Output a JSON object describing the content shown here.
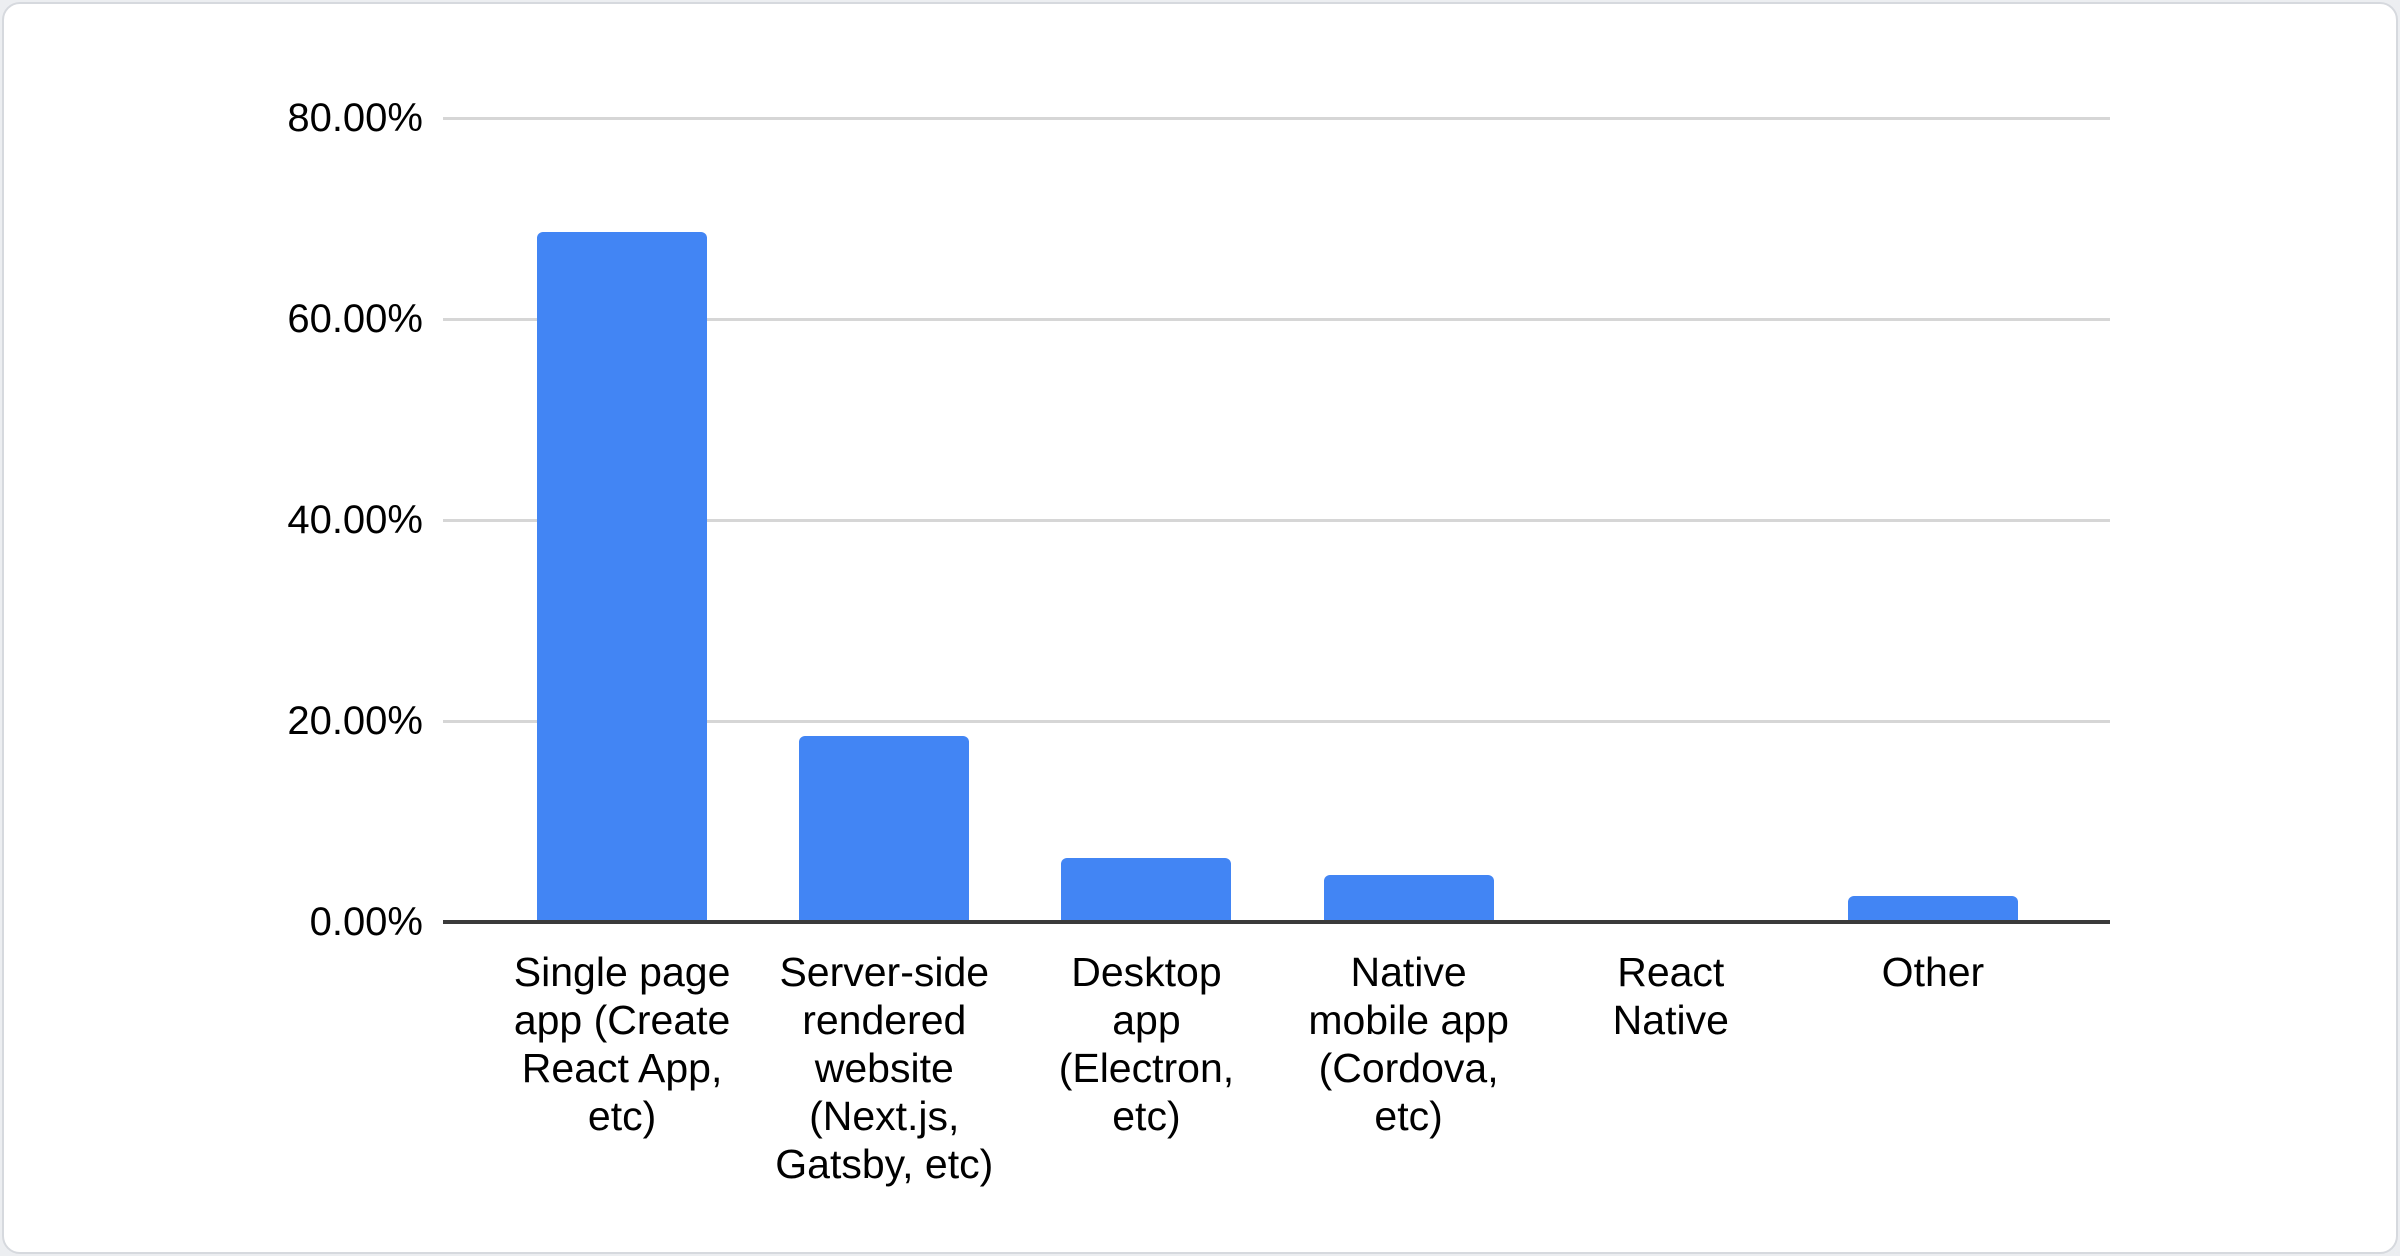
{
  "chart_data": {
    "type": "bar",
    "title": "",
    "categories": [
      "Single page app (Create React App, etc)",
      "Server-side rendered website (Next.js, Gatsby, etc)",
      "Desktop app (Electron, etc)",
      "Native mobile app (Cordova, etc)",
      "React Native",
      "Other"
    ],
    "display_categories": [
      "Single page\napp (Create\nReact App,\netc)",
      "Server-side\nrendered\nwebsite\n(Next.js,\nGatsby, etc)",
      "Desktop\napp\n(Electron,\netc)",
      "Native\nmobile app\n(Cordova,\netc)",
      "React\nNative",
      "Other"
    ],
    "values": [
      68.5,
      18.3,
      6.2,
      4.5,
      0,
      2.4
    ],
    "value_unit": "percent",
    "xlabel": "",
    "ylabel": "",
    "ylim": [
      0,
      80
    ],
    "yticks": [
      0,
      20,
      40,
      60,
      80
    ],
    "ytick_labels": [
      "0.00%",
      "20.00%",
      "40.00%",
      "60.00%",
      "80.00%"
    ],
    "legend": "none",
    "grid": true,
    "colors": {
      "bar": "#4285f4",
      "gridline": "#d6d6d6",
      "axis_line": "#3a3a3a",
      "text": "#000000",
      "card_background": "#ffffff",
      "card_border": "#d6d9de",
      "page_background": "#eceef1"
    }
  }
}
